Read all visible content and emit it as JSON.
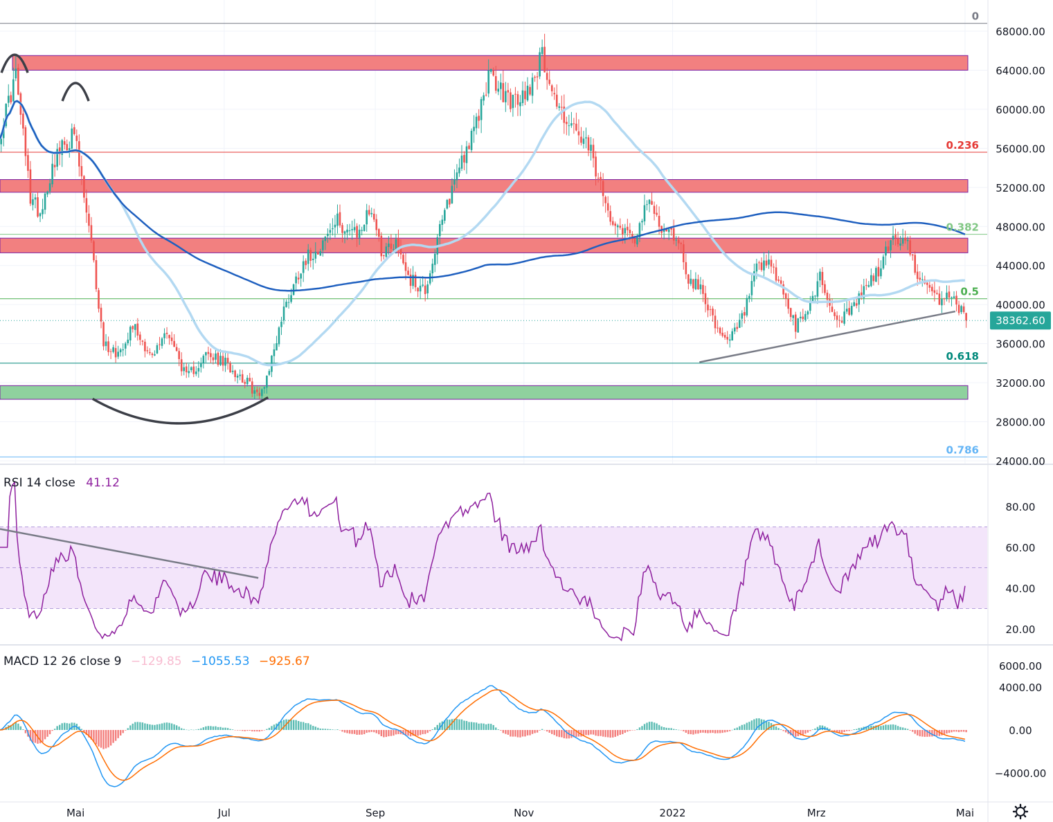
{
  "colors": {
    "up": "#26a69a",
    "down": "#ef5350",
    "sma_short": "#b3d9f2",
    "sma_long": "#1e5fbf",
    "resistance_zone": "#f28080",
    "support_zone": "#8fd19e",
    "zone_border": "#7b1fa2",
    "rsi_line": "#8e1f9e",
    "rsi_band": "#f3e5fa",
    "macd_line": "#2196f3",
    "signal_line": "#ff6d00",
    "hist_pos": "#26a69a",
    "hist_neg": "#ef5350",
    "price_tag": "#26a69a",
    "trendline": "#787b86",
    "fib_0236": "#e53935",
    "fib_0382": "#81c784",
    "fib_05": "#4caf50",
    "fib_0618": "#00897b",
    "fib_0786": "#64b5f6"
  },
  "chart_data": {
    "type": "candlestick",
    "symbol_timeframe": "daily",
    "price_axis": {
      "ylim": [
        24000,
        69000
      ],
      "ticks": [
        "68000.00",
        "64000.00",
        "60000.00",
        "56000.00",
        "52000.00",
        "48000.00",
        "44000.00",
        "40000.00",
        "36000.00",
        "32000.00",
        "28000.00",
        "24000.00"
      ],
      "tick_values": [
        68000,
        64000,
        60000,
        56000,
        52000,
        48000,
        44000,
        40000,
        36000,
        32000,
        28000,
        24000
      ]
    },
    "last_price": {
      "value": 38362.6,
      "label": "38362.60"
    },
    "time_axis": {
      "labels": [
        "Mai",
        "Jul",
        "Sep",
        "Nov",
        "2022",
        "Mrz",
        "Mai"
      ],
      "day_index": [
        31,
        92,
        154,
        215,
        276,
        335,
        396
      ]
    },
    "fibonacci": [
      {
        "level": "0",
        "price": 68800
      },
      {
        "level": "0.236",
        "price": 55600
      },
      {
        "level": "0.382",
        "price": 47200
      },
      {
        "level": "0.5",
        "price": 40600
      },
      {
        "level": "0.618",
        "price": 34000
      },
      {
        "level": "0.786",
        "price": 24400
      }
    ],
    "zones": [
      {
        "kind": "resistance",
        "from": 64000,
        "to": 65500
      },
      {
        "kind": "resistance",
        "from": 51500,
        "to": 52800
      },
      {
        "kind": "resistance",
        "from": 45300,
        "to": 46800
      },
      {
        "kind": "support",
        "from": 30300,
        "to": 31700
      }
    ],
    "sma_short_label": "",
    "sma_long_label": "",
    "trendlines": [
      {
        "pane": "price",
        "from": {
          "day": 287,
          "price": 34100
        },
        "to": {
          "day": 392,
          "price": 39300
        }
      }
    ],
    "patterns": [
      {
        "kind": "top-arc",
        "day": 6,
        "price": 65300
      },
      {
        "kind": "top-arc",
        "day": 31,
        "price": 62400
      },
      {
        "kind": "bottom-arc",
        "from_day": 38,
        "to_day": 110,
        "price": 29500
      }
    ],
    "candles_seed": "daily BTC Apr 2021 - Apr 2022",
    "rsi": {
      "label": "RSI 14 close",
      "value_label": "41.12",
      "value": 41.12,
      "ylim": [
        15,
        86
      ],
      "band": [
        30,
        70
      ],
      "mid": 50,
      "ticks": [
        "80.00",
        "60.00",
        "40.00",
        "20.00"
      ],
      "tick_values": [
        80,
        60,
        40,
        20
      ],
      "trendline": {
        "from": {
          "day": 0,
          "value": 69
        },
        "to": {
          "day": 106,
          "value": 45
        }
      }
    },
    "macd": {
      "label": "MACD 12 26 close 9",
      "hist_label": "−129.85",
      "macd_label": "−1055.53",
      "signal_label": "−925.67",
      "ylim": [
        -6000,
        6000
      ],
      "ticks": [
        "6000.00",
        "4000.00",
        "0.00",
        "−4000.00"
      ],
      "tick_values": [
        6000,
        4000,
        0,
        -4000
      ]
    },
    "anchors": [
      {
        "day": 0,
        "price": 58000
      },
      {
        "day": 6,
        "price": 63500
      },
      {
        "day": 12,
        "price": 51000
      },
      {
        "day": 16,
        "price": 49500
      },
      {
        "day": 22,
        "price": 55000
      },
      {
        "day": 30,
        "price": 57500
      },
      {
        "day": 37,
        "price": 46000
      },
      {
        "day": 42,
        "price": 36000
      },
      {
        "day": 48,
        "price": 35000
      },
      {
        "day": 54,
        "price": 38000
      },
      {
        "day": 62,
        "price": 34500
      },
      {
        "day": 68,
        "price": 37500
      },
      {
        "day": 76,
        "price": 32500
      },
      {
        "day": 84,
        "price": 34800
      },
      {
        "day": 92,
        "price": 34000
      },
      {
        "day": 100,
        "price": 32300
      },
      {
        "day": 106,
        "price": 30500
      },
      {
        "day": 110,
        "price": 33500
      },
      {
        "day": 116,
        "price": 39500
      },
      {
        "day": 124,
        "price": 44500
      },
      {
        "day": 130,
        "price": 45800
      },
      {
        "day": 138,
        "price": 48500
      },
      {
        "day": 146,
        "price": 47000
      },
      {
        "day": 152,
        "price": 50000
      },
      {
        "day": 156,
        "price": 45500
      },
      {
        "day": 162,
        "price": 46500
      },
      {
        "day": 168,
        "price": 42500
      },
      {
        "day": 174,
        "price": 41500
      },
      {
        "day": 180,
        "price": 47500
      },
      {
        "day": 188,
        "price": 54500
      },
      {
        "day": 194,
        "price": 57500
      },
      {
        "day": 200,
        "price": 63500
      },
      {
        "day": 206,
        "price": 61500
      },
      {
        "day": 212,
        "price": 60500
      },
      {
        "day": 218,
        "price": 63000
      },
      {
        "day": 222,
        "price": 65500
      },
      {
        "day": 228,
        "price": 60500
      },
      {
        "day": 236,
        "price": 57500
      },
      {
        "day": 242,
        "price": 55500
      },
      {
        "day": 248,
        "price": 50000
      },
      {
        "day": 254,
        "price": 48000
      },
      {
        "day": 260,
        "price": 47000
      },
      {
        "day": 266,
        "price": 50500
      },
      {
        "day": 272,
        "price": 47500
      },
      {
        "day": 278,
        "price": 46800
      },
      {
        "day": 282,
        "price": 42500
      },
      {
        "day": 288,
        "price": 41500
      },
      {
        "day": 294,
        "price": 37000
      },
      {
        "day": 298,
        "price": 36000
      },
      {
        "day": 304,
        "price": 38500
      },
      {
        "day": 310,
        "price": 43500
      },
      {
        "day": 316,
        "price": 44000
      },
      {
        "day": 322,
        "price": 40500
      },
      {
        "day": 326,
        "price": 37500
      },
      {
        "day": 332,
        "price": 40000
      },
      {
        "day": 336,
        "price": 43000
      },
      {
        "day": 342,
        "price": 38500
      },
      {
        "day": 348,
        "price": 39000
      },
      {
        "day": 354,
        "price": 41500
      },
      {
        "day": 360,
        "price": 43500
      },
      {
        "day": 366,
        "price": 47000
      },
      {
        "day": 372,
        "price": 46000
      },
      {
        "day": 378,
        "price": 42000
      },
      {
        "day": 384,
        "price": 40500
      },
      {
        "day": 390,
        "price": 41000
      },
      {
        "day": 396,
        "price": 38362
      }
    ]
  }
}
